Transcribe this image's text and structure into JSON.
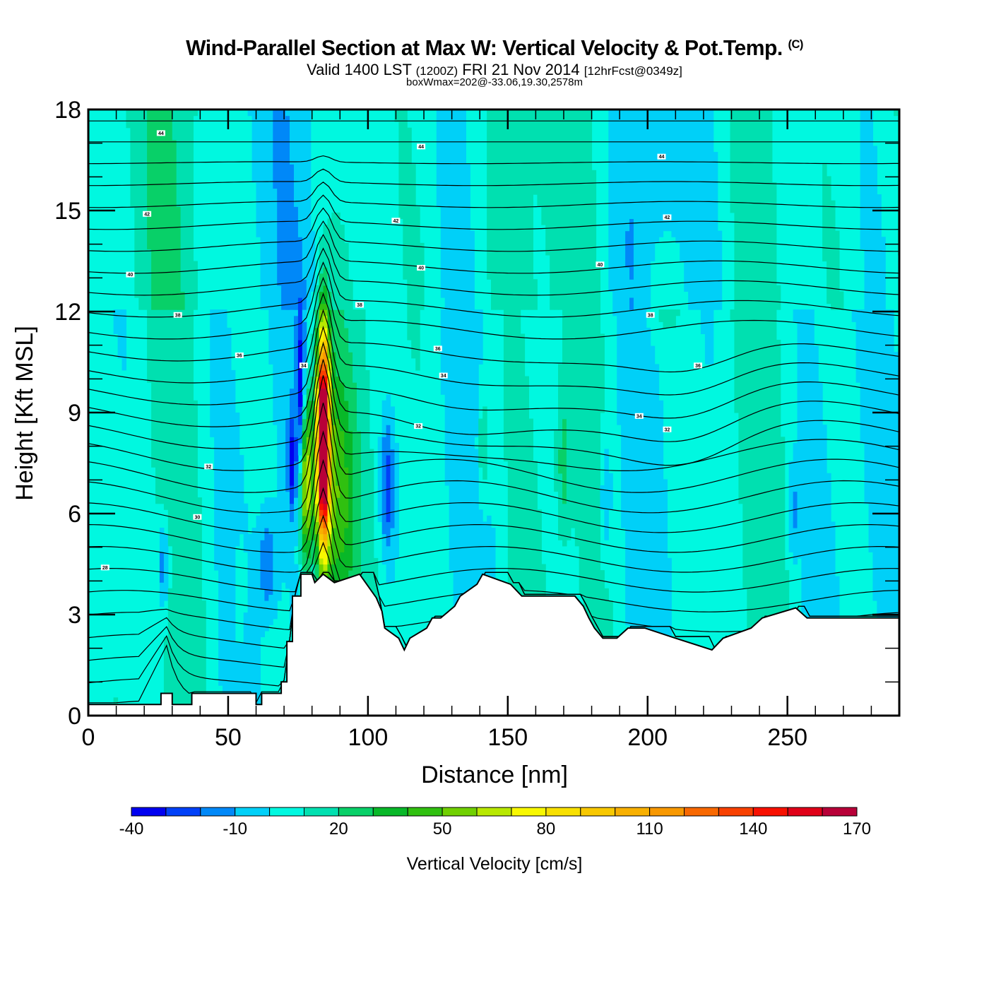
{
  "header": {
    "title": "Wind-Parallel Section at Max W: Vertical Velocity & Pot.Temp.",
    "copyright": "(C)",
    "subtitle_valid": "Valid 1400 LST",
    "subtitle_utc": "(1200Z)",
    "subtitle_date": "FRI 21 Nov 2014",
    "subtitle_fcst": "[12hrFcst@0349z]",
    "subtitle_box": "boxWmax=202@-33.06,19.30,2578m"
  },
  "chart_data": {
    "type": "heatmap",
    "title": "Wind-Parallel Section at Max W: Vertical Velocity & Pot.Temp.",
    "xlabel": "Distance [nm]",
    "ylabel": "Height [Kft MSL]",
    "xlim": [
      0,
      290
    ],
    "ylim": [
      0,
      18
    ],
    "x_ticks": [
      "0",
      "50",
      "100",
      "150",
      "200",
      "250"
    ],
    "x_tick_values": [
      0,
      50,
      100,
      150,
      200,
      250
    ],
    "x_minor_step": 10,
    "y_ticks": [
      "0",
      "3",
      "6",
      "9",
      "12",
      "15",
      "18"
    ],
    "y_tick_values": [
      0,
      3,
      6,
      9,
      12,
      15,
      18
    ],
    "y_minor_step": 1,
    "colorbar": {
      "label": "Vertical Velocity [cm/s]",
      "tick_labels": [
        "-40",
        "-10",
        "20",
        "50",
        "80",
        "110",
        "140",
        "170"
      ],
      "range": [
        -40,
        170
      ],
      "step": 10,
      "colors": [
        "#0000f0",
        "#0040f8",
        "#0088f8",
        "#00d0f8",
        "#00f8e0",
        "#00e0b0",
        "#08d068",
        "#08b828",
        "#30c010",
        "#70d000",
        "#b8e800",
        "#f8f800",
        "#f8e000",
        "#f8c800",
        "#f8b000",
        "#f89800",
        "#f86800",
        "#f84000",
        "#f81000",
        "#e00018",
        "#b80038"
      ],
      "placement": "bottom"
    },
    "terrain_kft": {
      "x": [
        0,
        26,
        26,
        30,
        30,
        37,
        37,
        47,
        47,
        60,
        60,
        62,
        62,
        69,
        69,
        71,
        71,
        72,
        72,
        73,
        73,
        76,
        76,
        80,
        80,
        81,
        81,
        84,
        84,
        88,
        88,
        97,
        97,
        103,
        103,
        105,
        105,
        106,
        106,
        111,
        111,
        113,
        113,
        115,
        115,
        121,
        121,
        123,
        123,
        126,
        126,
        131,
        131,
        133,
        133,
        139,
        139,
        141,
        141,
        151,
        151,
        155,
        155,
        174,
        174,
        177,
        177,
        179,
        179,
        181,
        181,
        184,
        184,
        189,
        189,
        193,
        193,
        199,
        199,
        210,
        210,
        223,
        223,
        227,
        227,
        237,
        237,
        241,
        241,
        253,
        253,
        257,
        257,
        290
      ],
      "y": [
        0.33,
        0.33,
        0.66,
        0.66,
        0.33,
        0.33,
        0.66,
        0.66,
        0.66,
        0.66,
        0.33,
        0.33,
        0.66,
        0.66,
        1.0,
        1.0,
        2.2,
        2.2,
        2.2,
        2.2,
        3.55,
        3.55,
        4.2,
        4.2,
        4.2,
        3.95,
        3.95,
        4.2,
        4.2,
        3.95,
        3.95,
        4.2,
        4.2,
        3.5,
        3.5,
        3.1,
        3.1,
        2.6,
        2.6,
        2.3,
        2.3,
        1.95,
        1.95,
        2.3,
        2.3,
        2.6,
        2.6,
        2.9,
        2.9,
        2.9,
        2.9,
        3.25,
        3.25,
        3.55,
        3.55,
        3.9,
        3.9,
        4.2,
        4.2,
        3.9,
        3.9,
        3.55,
        3.55,
        3.55,
        3.55,
        3.25,
        3.25,
        2.9,
        2.9,
        2.6,
        2.6,
        2.3,
        2.3,
        2.3,
        2.3,
        2.6,
        2.6,
        2.6,
        2.6,
        2.3,
        2.3,
        1.95,
        1.95,
        2.3,
        2.3,
        2.6,
        2.6,
        2.9,
        2.9,
        3.2,
        3.2,
        2.9,
        2.9,
        2.9
      ]
    },
    "theta_contour_labels": [
      "44",
      "44",
      "44",
      "42",
      "42",
      "42",
      "40",
      "40",
      "40",
      "38",
      "38",
      "38",
      "36",
      "36",
      "36",
      "34",
      "34",
      "34",
      "32",
      "32",
      "32",
      "30",
      "28"
    ],
    "max_w": {
      "value_cm_s": 202,
      "lat": -33.06,
      "lon": 19.3,
      "height_m": 2578,
      "x_nm": 84,
      "top_kft": 12
    }
  }
}
